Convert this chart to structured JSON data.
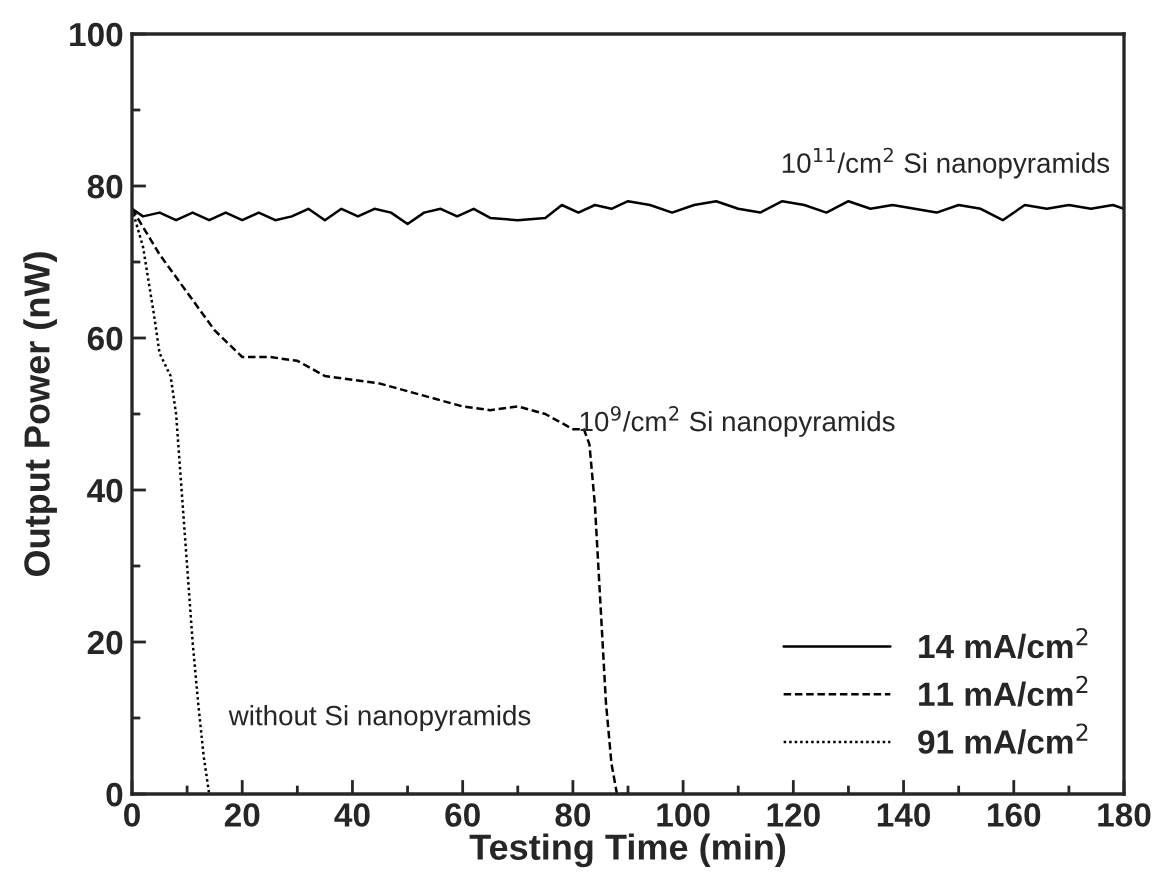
{
  "chart_data": {
    "type": "line",
    "xlabel": "Testing Time (min)",
    "ylabel": "Output Power (nW)",
    "xlim": [
      0,
      180
    ],
    "xticks": [
      0,
      20,
      40,
      60,
      80,
      100,
      120,
      140,
      160,
      180
    ],
    "ylim": [
      0,
      100
    ],
    "yticks": [
      0,
      20,
      40,
      60,
      80,
      100
    ],
    "grid": false,
    "legend": "bottom right",
    "marker": "none",
    "series": [
      {
        "name": "14 mA/cm$^{2}$",
        "color": "#000000",
        "line_style": "solid",
        "x": [
          0,
          2,
          5,
          8,
          11,
          14,
          17,
          20,
          23,
          26,
          29,
          32,
          35,
          38,
          41,
          44,
          47,
          50,
          53,
          56,
          59,
          62,
          65,
          70,
          75,
          78,
          81,
          84,
          87,
          90,
          94,
          98,
          102,
          106,
          110,
          114,
          118,
          122,
          126,
          130,
          134,
          138,
          142,
          146,
          150,
          154,
          158,
          162,
          166,
          170,
          174,
          178,
          180
        ],
        "values": [
          77,
          76,
          76.5,
          75.5,
          76.5,
          75.5,
          76.5,
          75.5,
          76.5,
          75.5,
          76,
          77,
          75.5,
          77,
          76,
          77,
          76.5,
          75,
          76.5,
          77,
          76,
          77,
          75.8,
          75.5,
          75.8,
          77.5,
          76.5,
          77.5,
          77,
          78,
          77.5,
          76.5,
          77.5,
          78,
          77,
          76.5,
          78,
          77.5,
          76.5,
          78,
          77,
          77.5,
          77,
          76.5,
          77.5,
          77,
          75.5,
          77.5,
          77,
          77.5,
          77,
          77.5,
          77
        ]
      },
      {
        "name": "11 mA/cm$^{2}$",
        "color": "#000000",
        "line_style": "dashed",
        "x": [
          0,
          5,
          10,
          15,
          20,
          25,
          30,
          35,
          40,
          45,
          50,
          55,
          60,
          65,
          70,
          75,
          80,
          82,
          83,
          84,
          85,
          86,
          87,
          88,
          90
        ],
        "values": [
          77,
          71,
          66,
          61,
          57.5,
          57.5,
          57,
          55,
          54.5,
          54,
          53,
          52,
          51,
          50.5,
          51,
          50,
          48,
          48,
          46,
          38,
          25,
          12,
          4,
          0,
          0
        ]
      },
      {
        "name": "91 mA/cm$^{2}$",
        "color": "#000000",
        "line_style": "dotted",
        "x": [
          0,
          2,
          4,
          5,
          7,
          8,
          9,
          10,
          11,
          12,
          13,
          14
        ],
        "values": [
          77,
          72,
          63,
          58,
          55,
          50,
          40,
          30,
          20,
          12,
          5,
          0
        ]
      }
    ],
    "annotations": [
      "10$^{11}$/cm$^{2}$ Si nanopyramids",
      "10$^{9}$/cm$^{2}$ Si nanopyramids",
      "without Si nanopyramids"
    ]
  }
}
